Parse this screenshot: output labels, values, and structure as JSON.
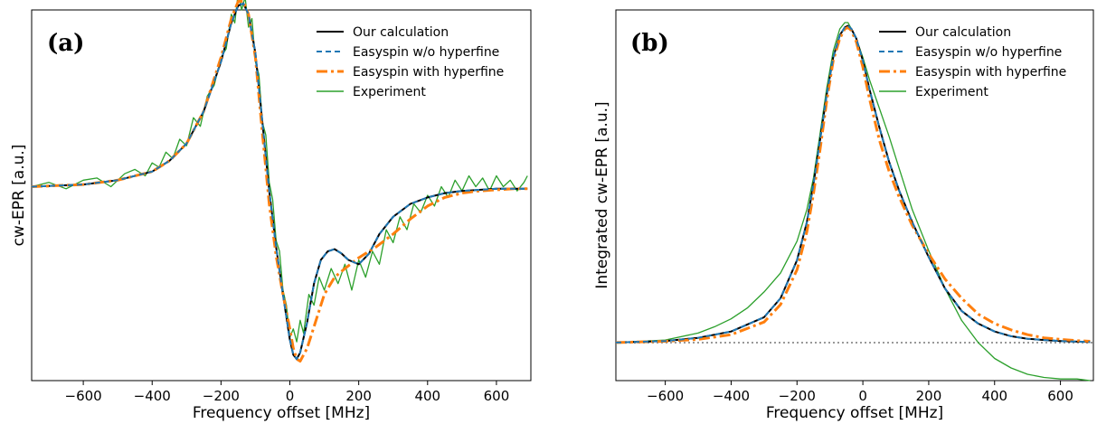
{
  "colors": {
    "our_calculation": "#000000",
    "easyspin_wo": "#1f77b4",
    "easyspin_with": "#ff7f0e",
    "experiment": "#2ca02c",
    "baseline": "#999999"
  },
  "chart_data": [
    {
      "type": "line",
      "panel_label": "(a)",
      "xlabel": "Frequency offset  [MHz]",
      "ylabel": "cw-EPR  [a.u.]",
      "xlim": [
        -750,
        700
      ],
      "ylim": [
        -0.9,
        0.82
      ],
      "xticks": [
        -600,
        -400,
        -200,
        0,
        200,
        400,
        600
      ],
      "xtick_labels": [
        "−600",
        "−400",
        "−200",
        "0",
        "200",
        "400",
        "600"
      ],
      "yticks_shown": false,
      "legend_position": "top-right",
      "series": [
        {
          "name": "Our calculation",
          "style": "solid",
          "x": [
            -750,
            -600,
            -500,
            -400,
            -350,
            -300,
            -250,
            -200,
            -170,
            -150,
            -135,
            -120,
            -100,
            -80,
            -60,
            -40,
            -20,
            0,
            10,
            20,
            30,
            50,
            70,
            90,
            110,
            130,
            150,
            170,
            200,
            230,
            260,
            300,
            350,
            400,
            450,
            500,
            550,
            600,
            650,
            690
          ],
          "y": [
            0,
            0.01,
            0.03,
            0.07,
            0.12,
            0.2,
            0.35,
            0.58,
            0.76,
            0.84,
            0.85,
            0.8,
            0.62,
            0.3,
            -0.02,
            -0.28,
            -0.5,
            -0.71,
            -0.78,
            -0.8,
            -0.77,
            -0.63,
            -0.45,
            -0.34,
            -0.3,
            -0.29,
            -0.31,
            -0.34,
            -0.36,
            -0.31,
            -0.22,
            -0.14,
            -0.08,
            -0.05,
            -0.03,
            -0.02,
            -0.015,
            -0.01,
            -0.01,
            -0.01
          ]
        },
        {
          "name": "Easyspin w/o hyperfine",
          "style": "dashed",
          "x": [
            -750,
            -600,
            -500,
            -400,
            -350,
            -300,
            -250,
            -200,
            -170,
            -150,
            -135,
            -120,
            -100,
            -80,
            -60,
            -40,
            -20,
            0,
            10,
            20,
            30,
            50,
            70,
            90,
            110,
            130,
            150,
            170,
            200,
            230,
            260,
            300,
            350,
            400,
            450,
            500,
            550,
            600,
            650,
            690
          ],
          "y": [
            0,
            0.01,
            0.03,
            0.07,
            0.12,
            0.2,
            0.35,
            0.58,
            0.76,
            0.84,
            0.85,
            0.8,
            0.62,
            0.3,
            -0.02,
            -0.28,
            -0.5,
            -0.71,
            -0.78,
            -0.8,
            -0.77,
            -0.63,
            -0.45,
            -0.34,
            -0.3,
            -0.29,
            -0.31,
            -0.34,
            -0.36,
            -0.31,
            -0.22,
            -0.14,
            -0.08,
            -0.05,
            -0.03,
            -0.02,
            -0.015,
            -0.01,
            -0.01,
            -0.01
          ]
        },
        {
          "name": "Easyspin with hyperfine",
          "style": "dashdot",
          "x": [
            -750,
            -600,
            -500,
            -400,
            -350,
            -300,
            -250,
            -200,
            -170,
            -150,
            -135,
            -120,
            -100,
            -80,
            -60,
            -40,
            -20,
            0,
            10,
            20,
            30,
            50,
            70,
            100,
            130,
            160,
            200,
            250,
            300,
            350,
            400,
            450,
            500,
            550,
            600,
            650,
            690
          ],
          "y": [
            0,
            0.01,
            0.03,
            0.07,
            0.12,
            0.2,
            0.35,
            0.6,
            0.78,
            0.86,
            0.86,
            0.8,
            0.6,
            0.25,
            -0.08,
            -0.32,
            -0.5,
            -0.66,
            -0.75,
            -0.8,
            -0.81,
            -0.75,
            -0.65,
            -0.5,
            -0.42,
            -0.38,
            -0.33,
            -0.28,
            -0.22,
            -0.15,
            -0.09,
            -0.05,
            -0.03,
            -0.02,
            -0.015,
            -0.01,
            -0.01
          ]
        },
        {
          "name": "Experiment",
          "style": "solid-thin",
          "x": [
            -750,
            -700,
            -650,
            -600,
            -560,
            -520,
            -480,
            -450,
            -420,
            -400,
            -380,
            -360,
            -340,
            -320,
            -300,
            -280,
            -260,
            -240,
            -220,
            -200,
            -185,
            -170,
            -160,
            -150,
            -140,
            -130,
            -120,
            -110,
            -100,
            -90,
            -80,
            -70,
            -60,
            -50,
            -40,
            -30,
            -20,
            -10,
            0,
            10,
            20,
            30,
            40,
            55,
            70,
            85,
            100,
            120,
            140,
            160,
            180,
            200,
            220,
            240,
            260,
            280,
            300,
            320,
            340,
            360,
            380,
            400,
            420,
            440,
            460,
            480,
            500,
            520,
            540,
            560,
            580,
            600,
            620,
            640,
            660,
            680,
            690
          ],
          "y": [
            0,
            0.02,
            -0.01,
            0.03,
            0.04,
            0.0,
            0.06,
            0.08,
            0.05,
            0.11,
            0.09,
            0.16,
            0.13,
            0.22,
            0.19,
            0.32,
            0.28,
            0.42,
            0.47,
            0.6,
            0.64,
            0.8,
            0.76,
            0.9,
            0.82,
            0.88,
            0.74,
            0.78,
            0.58,
            0.52,
            0.3,
            0.24,
            0.02,
            -0.06,
            -0.25,
            -0.3,
            -0.48,
            -0.55,
            -0.7,
            -0.66,
            -0.72,
            -0.62,
            -0.68,
            -0.5,
            -0.55,
            -0.42,
            -0.48,
            -0.38,
            -0.45,
            -0.36,
            -0.48,
            -0.34,
            -0.42,
            -0.3,
            -0.36,
            -0.2,
            -0.26,
            -0.14,
            -0.2,
            -0.08,
            -0.12,
            -0.04,
            -0.09,
            0.0,
            -0.05,
            0.03,
            -0.02,
            0.05,
            0.0,
            0.04,
            -0.02,
            0.05,
            0.0,
            0.03,
            -0.02,
            0.02,
            0.05
          ]
        }
      ]
    },
    {
      "type": "line",
      "panel_label": "(b)",
      "xlabel": "Frequency offset  [MHz]",
      "ylabel": "Integrated cw-EPR  [a.u.]",
      "xlim": [
        -750,
        700
      ],
      "ylim": [
        -0.12,
        1.05
      ],
      "xticks": [
        -600,
        -400,
        -200,
        0,
        200,
        400,
        600
      ],
      "xtick_labels": [
        "−600",
        "−400",
        "−200",
        "0",
        "200",
        "400",
        "600"
      ],
      "yticks_shown": false,
      "baseline_y": 0,
      "legend_position": "top-right",
      "series": [
        {
          "name": "Our calculation",
          "style": "solid",
          "x": [
            -750,
            -600,
            -500,
            -400,
            -300,
            -250,
            -200,
            -170,
            -150,
            -130,
            -110,
            -90,
            -70,
            -55,
            -45,
            -35,
            -20,
            0,
            20,
            50,
            80,
            110,
            150,
            200,
            250,
            300,
            350,
            400,
            450,
            500,
            550,
            600,
            650,
            690
          ],
          "y": [
            0.0,
            0.005,
            0.015,
            0.035,
            0.08,
            0.14,
            0.26,
            0.38,
            0.5,
            0.64,
            0.78,
            0.9,
            0.97,
            0.995,
            1.0,
            0.99,
            0.96,
            0.89,
            0.8,
            0.68,
            0.57,
            0.48,
            0.38,
            0.27,
            0.17,
            0.1,
            0.06,
            0.035,
            0.02,
            0.012,
            0.008,
            0.005,
            0.003,
            0.002
          ]
        },
        {
          "name": "Easyspin w/o hyperfine",
          "style": "dashed",
          "x": [
            -750,
            -600,
            -500,
            -400,
            -300,
            -250,
            -200,
            -170,
            -150,
            -130,
            -110,
            -90,
            -70,
            -55,
            -45,
            -35,
            -20,
            0,
            20,
            50,
            80,
            110,
            150,
            200,
            250,
            300,
            350,
            400,
            450,
            500,
            550,
            600,
            650,
            690
          ],
          "y": [
            0.0,
            0.005,
            0.015,
            0.035,
            0.08,
            0.14,
            0.26,
            0.38,
            0.5,
            0.64,
            0.78,
            0.9,
            0.97,
            0.995,
            1.0,
            0.99,
            0.96,
            0.89,
            0.8,
            0.68,
            0.57,
            0.48,
            0.38,
            0.27,
            0.17,
            0.1,
            0.06,
            0.035,
            0.02,
            0.012,
            0.008,
            0.005,
            0.003,
            0.002
          ]
        },
        {
          "name": "Easyspin with hyperfine",
          "style": "dashdot",
          "x": [
            -750,
            -600,
            -500,
            -400,
            -300,
            -250,
            -200,
            -170,
            -150,
            -130,
            -110,
            -90,
            -70,
            -55,
            -45,
            -35,
            -20,
            0,
            20,
            50,
            80,
            110,
            150,
            200,
            250,
            300,
            350,
            400,
            450,
            500,
            550,
            600,
            650,
            690
          ],
          "y": [
            0.0,
            0.004,
            0.01,
            0.025,
            0.065,
            0.12,
            0.23,
            0.35,
            0.47,
            0.61,
            0.76,
            0.89,
            0.96,
            0.99,
            0.995,
            0.985,
            0.95,
            0.87,
            0.77,
            0.64,
            0.54,
            0.46,
            0.37,
            0.28,
            0.2,
            0.14,
            0.09,
            0.06,
            0.04,
            0.025,
            0.015,
            0.01,
            0.006,
            0.004
          ]
        },
        {
          "name": "Experiment",
          "style": "solid-thin",
          "x": [
            -750,
            -600,
            -500,
            -450,
            -400,
            -350,
            -300,
            -250,
            -200,
            -170,
            -150,
            -130,
            -110,
            -90,
            -70,
            -55,
            -45,
            -35,
            -20,
            0,
            20,
            50,
            80,
            110,
            150,
            200,
            250,
            300,
            350,
            400,
            450,
            500,
            550,
            600,
            650,
            690
          ],
          "y": [
            0.0,
            0.008,
            0.03,
            0.05,
            0.075,
            0.11,
            0.16,
            0.22,
            0.32,
            0.42,
            0.52,
            0.66,
            0.8,
            0.92,
            0.99,
            1.01,
            1.01,
            0.99,
            0.96,
            0.9,
            0.83,
            0.74,
            0.65,
            0.55,
            0.42,
            0.29,
            0.17,
            0.07,
            0.0,
            -0.05,
            -0.08,
            -0.1,
            -0.11,
            -0.115,
            -0.115,
            -0.12
          ]
        }
      ]
    }
  ]
}
